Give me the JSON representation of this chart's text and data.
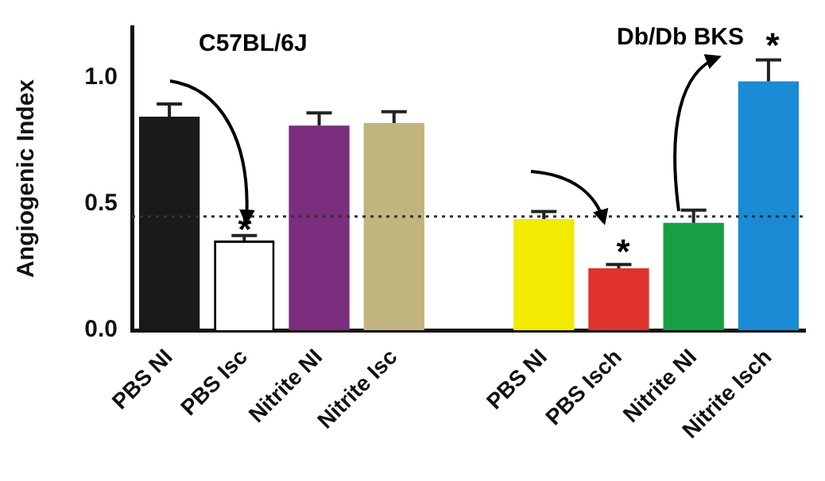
{
  "chart_data": {
    "type": "bar",
    "ylabel": "Angiogenic Index",
    "categories": [
      "PBS NI",
      "PBS Isc",
      "Nitrite NI",
      "Nitrite Isc",
      null,
      "PBS NI",
      "PBS Isch",
      "Nitrite NI",
      "Nitrite Isch"
    ],
    "values": [
      0.845,
      0.355,
      0.81,
      0.82,
      null,
      0.44,
      0.245,
      0.425,
      0.985
    ],
    "errors": [
      [
        0.845,
        0.895
      ],
      [
        0.355,
        0.375
      ],
      [
        0.81,
        0.86
      ],
      [
        0.82,
        0.865
      ],
      null,
      [
        0.44,
        0.47
      ],
      [
        0.245,
        0.26
      ],
      [
        0.425,
        0.475
      ],
      [
        0.985,
        1.07
      ]
    ],
    "colors": [
      "#1a1a1a",
      "#ffffff",
      "#7b2d7e",
      "#c2b47e",
      "#ffffff",
      "#f2ea00",
      "#e0332e",
      "#16a043",
      "#1a8ad4"
    ],
    "ylim": [
      0,
      1.2
    ],
    "yticks": [
      {
        "value": 0,
        "label": "0.0"
      },
      {
        "value": 0.5,
        "label": "0.5"
      },
      {
        "value": 1,
        "label": "1.0"
      }
    ],
    "grid": false,
    "legend": false,
    "ref_lines": [
      {
        "axis": "y",
        "value": 0.45,
        "line_style": "dotted",
        "color": "#333333"
      }
    ],
    "annotations": [
      "C57BL/6J",
      "Db/Db BKS",
      "*",
      "*",
      "*"
    ]
  }
}
